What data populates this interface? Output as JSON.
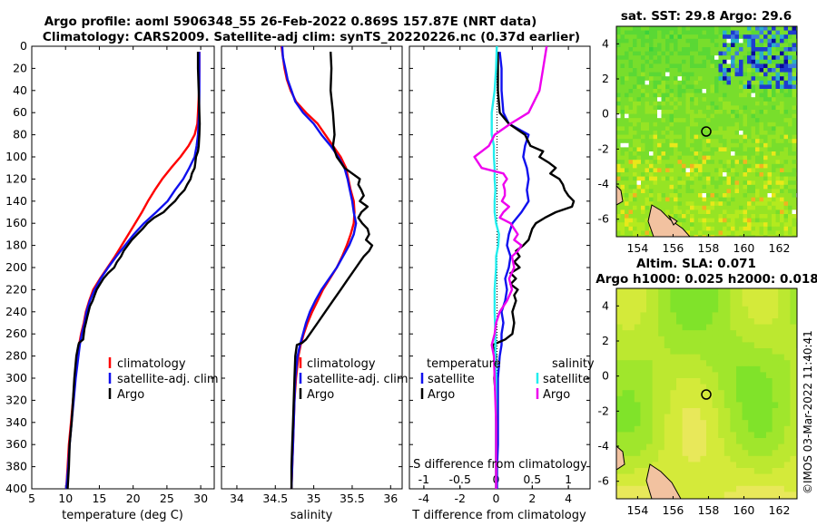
{
  "title_line1": "Argo profile: aoml 5906348_55 26-Feb-2022 0.869S 157.87E (NRT data)",
  "title_line2": "Climatology: CARS2009. Satellite-adj clim: synTS_20220226.nc (0.37d earlier)",
  "sst_title": "sat. SST: 29.8 Argo: 29.6",
  "sla_title1": "Altim. SLA: 0.071",
  "sla_title2": "Argo h1000: 0.025 h2000: 0.018",
  "credit": "©IMOS 03-Mar-2022 11:40:41",
  "chart_data": [
    {
      "type": "line",
      "name": "temperature-profile",
      "xlabel": "temperature (deg C)",
      "xlim": [
        5,
        32
      ],
      "ylim": [
        0,
        400
      ],
      "xticks": [
        "5",
        "10",
        "15",
        "20",
        "25",
        "30"
      ],
      "yticks": [
        "0",
        "20",
        "40",
        "60",
        "80",
        "100",
        "120",
        "140",
        "160",
        "180",
        "200",
        "220",
        "240",
        "260",
        "280",
        "300",
        "320",
        "340",
        "360",
        "380",
        "400"
      ],
      "legend": [
        "climatology",
        "satellite-adj. clim",
        "Argo"
      ],
      "colors": {
        "climatology": "#ff0000",
        "satellite": "#1010ee",
        "argo": "#000000"
      },
      "series": [
        {
          "name": "climatology",
          "depth": [
            5,
            20,
            40,
            60,
            70,
            80,
            90,
            100,
            110,
            120,
            130,
            140,
            150,
            160,
            170,
            180,
            190,
            200,
            210,
            220,
            230,
            240,
            250,
            260,
            270,
            280,
            300,
            320,
            340,
            360,
            380,
            400
          ],
          "values": [
            29.8,
            29.8,
            29.75,
            29.6,
            29.5,
            29.1,
            28.2,
            27.0,
            25.6,
            24.3,
            23.2,
            22.2,
            21.3,
            20.3,
            19.3,
            18.3,
            17.3,
            16.2,
            15.1,
            14.1,
            13.5,
            13.0,
            12.7,
            12.3,
            12.0,
            11.8,
            11.4,
            11.1,
            10.8,
            10.5,
            10.3,
            10.1
          ]
        },
        {
          "name": "satellite-adj. clim",
          "depth": [
            5,
            20,
            40,
            60,
            80,
            90,
            100,
            110,
            120,
            130,
            140,
            150,
            160,
            170,
            180,
            190,
            200,
            210,
            220,
            230,
            240,
            250,
            260,
            270,
            280,
            300,
            320,
            340,
            360,
            380,
            400
          ],
          "values": [
            29.8,
            29.8,
            29.8,
            29.75,
            29.6,
            29.4,
            29.1,
            28.3,
            27.4,
            26.2,
            25.1,
            23.4,
            21.6,
            20.1,
            18.8,
            17.5,
            16.3,
            15.2,
            14.3,
            13.6,
            13.1,
            12.8,
            12.4,
            12.1,
            11.9,
            11.5,
            11.2,
            10.9,
            10.6,
            10.4,
            10.1
          ]
        },
        {
          "name": "Argo",
          "depth": [
            5,
            20,
            40,
            60,
            70,
            80,
            90,
            95,
            100,
            105,
            110,
            115,
            120,
            125,
            130,
            135,
            140,
            145,
            150,
            155,
            160,
            165,
            170,
            175,
            180,
            185,
            190,
            195,
            200,
            205,
            210,
            215,
            220,
            225,
            230,
            235,
            240,
            245,
            250,
            255,
            260,
            265,
            268,
            270,
            280,
            300,
            320,
            340,
            360,
            380,
            400
          ],
          "values": [
            29.6,
            29.6,
            29.7,
            29.8,
            29.85,
            29.8,
            29.7,
            29.6,
            29.3,
            29.2,
            29.1,
            28.7,
            28.5,
            28.0,
            27.6,
            26.8,
            26.2,
            25.3,
            24.5,
            23.1,
            22.1,
            21.4,
            20.6,
            19.8,
            19.2,
            18.6,
            18.2,
            17.6,
            17.2,
            16.3,
            15.6,
            15.1,
            14.6,
            14.3,
            14.0,
            13.6,
            13.4,
            13.2,
            13.0,
            12.8,
            12.7,
            12.6,
            12.0,
            11.9,
            11.6,
            11.3,
            11.1,
            10.9,
            10.6,
            10.5,
            10.3
          ]
        }
      ]
    },
    {
      "type": "line",
      "name": "salinity-profile",
      "xlabel": "salinity",
      "xlim": [
        33.8,
        36.15
      ],
      "ylim": [
        0,
        400
      ],
      "xticks": [
        "34",
        "34.5",
        "35",
        "35.5",
        "36"
      ],
      "legend": [
        "climatology",
        "satellite-adj. clim",
        "Argo"
      ],
      "colors": {
        "climatology": "#ff0000",
        "satellite": "#1010ee",
        "argo": "#000000"
      },
      "series": [
        {
          "name": "climatology",
          "depth": [
            0,
            10,
            20,
            30,
            40,
            50,
            60,
            70,
            80,
            90,
            100,
            110,
            120,
            130,
            140,
            150,
            160,
            170,
            180,
            190,
            200,
            210,
            220,
            230,
            240,
            250,
            260,
            270,
            280,
            300,
            320,
            340,
            360,
            380,
            400
          ],
          "values": [
            34.58,
            34.6,
            34.62,
            34.65,
            34.7,
            34.77,
            34.9,
            35.05,
            35.15,
            35.25,
            35.35,
            35.42,
            35.45,
            35.48,
            35.52,
            35.53,
            35.52,
            35.48,
            35.43,
            35.37,
            35.3,
            35.21,
            35.12,
            35.05,
            34.98,
            34.92,
            34.87,
            34.83,
            34.8,
            34.77,
            34.75,
            34.74,
            34.73,
            34.72,
            34.71
          ]
        },
        {
          "name": "satellite-adj. clim",
          "depth": [
            0,
            10,
            20,
            30,
            40,
            50,
            60,
            70,
            80,
            90,
            100,
            110,
            120,
            130,
            140,
            150,
            160,
            170,
            180,
            190,
            200,
            210,
            220,
            230,
            240,
            250,
            260,
            270,
            280,
            300,
            320,
            340,
            360,
            380,
            400
          ],
          "values": [
            34.59,
            34.6,
            34.63,
            34.66,
            34.71,
            34.76,
            34.86,
            35.0,
            35.1,
            35.22,
            35.32,
            35.4,
            35.44,
            35.47,
            35.5,
            35.52,
            35.55,
            35.52,
            35.46,
            35.38,
            35.3,
            35.2,
            35.1,
            35.02,
            34.95,
            34.9,
            34.86,
            34.82,
            34.79,
            34.76,
            34.75,
            34.74,
            34.73,
            34.72,
            34.71
          ]
        },
        {
          "name": "Argo",
          "depth": [
            5,
            20,
            40,
            60,
            80,
            90,
            100,
            105,
            110,
            115,
            120,
            125,
            130,
            135,
            140,
            145,
            150,
            155,
            160,
            165,
            170,
            175,
            180,
            185,
            190,
            195,
            200,
            210,
            220,
            230,
            240,
            250,
            260,
            265,
            268,
            270,
            280,
            300,
            320,
            340,
            360,
            380,
            400
          ],
          "values": [
            35.22,
            35.23,
            35.22,
            35.25,
            35.27,
            35.25,
            35.3,
            35.35,
            35.4,
            35.5,
            35.6,
            35.58,
            35.62,
            35.65,
            35.6,
            35.7,
            35.62,
            35.58,
            35.63,
            35.7,
            35.72,
            35.68,
            35.76,
            35.72,
            35.65,
            35.6,
            35.55,
            35.45,
            35.35,
            35.25,
            35.15,
            35.05,
            34.95,
            34.9,
            34.85,
            34.78,
            34.76,
            34.75,
            34.74,
            34.73,
            34.72,
            34.71,
            34.71
          ]
        }
      ]
    },
    {
      "type": "line",
      "name": "difference-profile",
      "xlabel": "T difference from climatology",
      "xlabel_top": "S difference from climatology",
      "xlim_T": [
        -4.8,
        5.2
      ],
      "xlim_S": [
        -1.2,
        1.3
      ],
      "ylim": [
        0,
        400
      ],
      "xticks": [
        "-4",
        "-2",
        "0",
        "2",
        "4"
      ],
      "xticks_top": [
        "-1",
        "-0.5",
        "0",
        "0.5",
        "1"
      ],
      "legend_left_title": "temperature",
      "legend_right_title": "salinity",
      "legend_left": [
        "satellite",
        "Argo"
      ],
      "legend_right": [
        "satellite",
        "Argo"
      ],
      "colors": {
        "t_satellite": "#1010ee",
        "t_argo": "#000000",
        "s_satellite": "#22eeee",
        "s_argo": "#ee00ee"
      },
      "series": [
        {
          "name": "T satellite",
          "var": "T",
          "depth": [
            5,
            20,
            40,
            60,
            70,
            80,
            90,
            100,
            110,
            120,
            130,
            140,
            150,
            160,
            170,
            180,
            190,
            200,
            210,
            220,
            230,
            240,
            250,
            260,
            270,
            280,
            300,
            320,
            340,
            360,
            380,
            400
          ],
          "values": [
            0.2,
            0.3,
            0.3,
            0.4,
            0.7,
            1.8,
            1.6,
            1.5,
            1.7,
            1.8,
            1.7,
            1.8,
            1.4,
            0.9,
            0.7,
            0.6,
            0.8,
            0.7,
            0.5,
            0.6,
            0.5,
            0.3,
            0.4,
            0.3,
            0.3,
            0.2,
            0.1,
            0.1,
            0.1,
            0.1,
            0.05,
            0.05
          ]
        },
        {
          "name": "T Argo",
          "var": "T",
          "depth": [
            5,
            20,
            40,
            60,
            70,
            80,
            90,
            95,
            100,
            105,
            110,
            115,
            120,
            125,
            130,
            135,
            140,
            145,
            150,
            155,
            160,
            165,
            170,
            175,
            180,
            185,
            190,
            195,
            200,
            205,
            210,
            215,
            220,
            225,
            230,
            240,
            250,
            260,
            265,
            270,
            275,
            280,
            300,
            320,
            340,
            360,
            380,
            400
          ],
          "values": [
            0.1,
            0.1,
            0.1,
            0.2,
            0.7,
            1.6,
            1.9,
            2.6,
            2.4,
            2.9,
            3.3,
            3.0,
            3.5,
            3.7,
            3.8,
            4.0,
            4.3,
            4.2,
            3.3,
            2.7,
            2.2,
            2.0,
            1.9,
            1.8,
            1.5,
            1.1,
            1.3,
            1.0,
            1.3,
            0.8,
            1.1,
            0.8,
            1.2,
            1.0,
            1.1,
            0.9,
            1.0,
            0.9,
            0.5,
            -0.2,
            -0.1,
            0.0,
            -0.1,
            0.0,
            0.0,
            0.0,
            0.0,
            0.0
          ]
        },
        {
          "name": "S satellite",
          "var": "S",
          "depth": [
            0,
            20,
            40,
            60,
            80,
            90,
            100,
            110,
            120,
            130,
            140,
            150,
            160,
            170,
            180,
            190,
            200,
            220,
            240,
            260,
            280,
            300,
            320,
            340,
            360,
            380,
            400
          ],
          "values": [
            0.01,
            0.0,
            -0.02,
            -0.06,
            -0.06,
            -0.03,
            -0.03,
            -0.02,
            -0.02,
            -0.01,
            -0.02,
            -0.02,
            0.0,
            0.04,
            0.03,
            0.0,
            0.0,
            -0.02,
            -0.02,
            -0.01,
            -0.01,
            0.0,
            0.0,
            0.0,
            0.0,
            0.0,
            0.0
          ]
        },
        {
          "name": "S Argo",
          "var": "S",
          "depth": [
            0,
            20,
            40,
            60,
            70,
            80,
            90,
            95,
            100,
            105,
            110,
            115,
            120,
            125,
            130,
            135,
            140,
            145,
            150,
            155,
            160,
            165,
            170,
            175,
            180,
            185,
            190,
            200,
            210,
            220,
            230,
            240,
            250,
            260,
            270,
            280,
            300,
            320,
            340,
            360,
            380,
            400
          ],
          "values": [
            0.7,
            0.65,
            0.6,
            0.45,
            0.2,
            -0.02,
            -0.1,
            -0.2,
            -0.3,
            -0.25,
            -0.2,
            0.1,
            0.15,
            0.1,
            0.12,
            0.12,
            0.08,
            0.18,
            0.1,
            0.05,
            0.2,
            0.25,
            0.3,
            0.25,
            0.35,
            0.3,
            0.22,
            0.25,
            0.18,
            0.22,
            0.15,
            0.05,
            0.0,
            -0.02,
            -0.06,
            -0.03,
            -0.02,
            -0.01,
            0.0,
            0.0,
            0.0,
            0.0
          ]
        }
      ]
    },
    {
      "type": "heatmap",
      "name": "sst-map",
      "title": "sat. SST: 29.8 Argo: 29.6",
      "xticks": [
        "154",
        "156",
        "158",
        "160",
        "162"
      ],
      "yticks": [
        "4",
        "2",
        "0",
        "-2",
        "-4",
        "-6"
      ],
      "xlim": [
        152.8,
        163.0
      ],
      "ylim": [
        -7.0,
        5.0
      ],
      "argo_location": {
        "lon": 157.87,
        "lat": -0.87
      }
    },
    {
      "type": "heatmap",
      "name": "sla-map",
      "title": "Altim. SLA: 0.071",
      "subtitle": "Argo h1000: 0.025 h2000: 0.018",
      "xticks": [
        "154",
        "156",
        "158",
        "160",
        "162"
      ],
      "yticks": [
        "4",
        "2",
        "0",
        "-2",
        "-4",
        "-6"
      ],
      "xlim": [
        152.8,
        163.0
      ],
      "ylim": [
        -7.0,
        5.0
      ],
      "argo_location": {
        "lon": 157.87,
        "lat": -0.87
      }
    }
  ]
}
